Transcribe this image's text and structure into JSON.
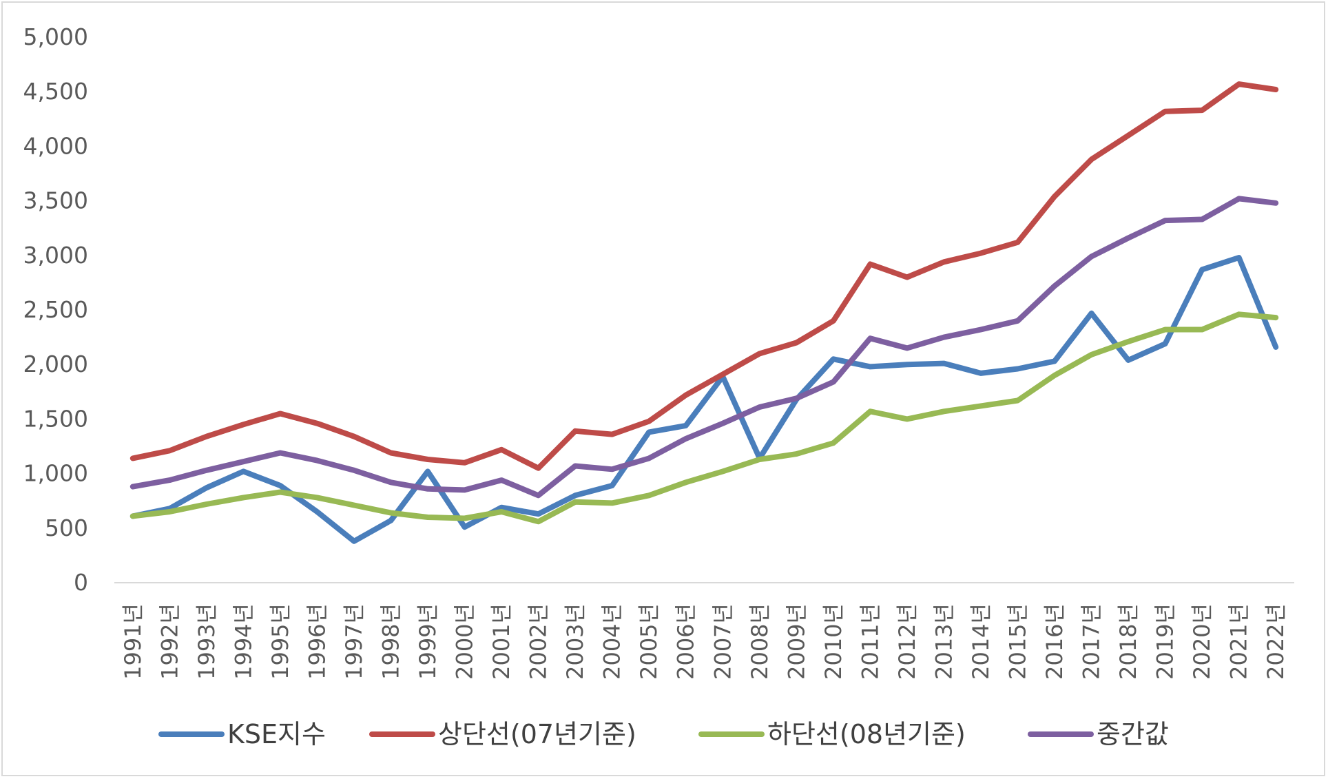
{
  "chart_data": {
    "type": "line",
    "title": "",
    "xlabel": "",
    "ylabel": "",
    "ylim": [
      0,
      5000
    ],
    "yticks": [
      0,
      500,
      1000,
      1500,
      2000,
      2500,
      3000,
      3500,
      4000,
      4500,
      5000
    ],
    "ytick_labels": [
      "0",
      "500",
      "1,000",
      "1,500",
      "2,000",
      "2,500",
      "3,000",
      "3,500",
      "4,000",
      "4,500",
      "5,000"
    ],
    "grid": false,
    "legend_position": "bottom",
    "categories": [
      "1991년",
      "1992년",
      "1993년",
      "1994년",
      "1995년",
      "1996년",
      "1997년",
      "1998년",
      "1999년",
      "2000년",
      "2001년",
      "2002년",
      "2003년",
      "2004년",
      "2005년",
      "2006년",
      "2007년",
      "2008년",
      "2009년",
      "2010년",
      "2011년",
      "2012년",
      "2013년",
      "2014년",
      "2015년",
      "2016년",
      "2017년",
      "2018년",
      "2019년",
      "2020년",
      "2021년",
      "2022년"
    ],
    "series": [
      {
        "name": "KSE지수",
        "color": "#4a7ebb",
        "values": [
          610,
          680,
          870,
          1020,
          890,
          650,
          380,
          570,
          1020,
          510,
          690,
          630,
          800,
          890,
          1380,
          1440,
          1890,
          1140,
          1680,
          2050,
          1980,
          2000,
          2010,
          1920,
          1960,
          2030,
          2470,
          2040,
          2190,
          2870,
          2980,
          2160
        ]
      },
      {
        "name": "상단선(07년기준)",
        "color": "#be4b48",
        "values": [
          1140,
          1210,
          1340,
          1450,
          1550,
          1460,
          1340,
          1190,
          1130,
          1100,
          1220,
          1050,
          1390,
          1360,
          1480,
          1720,
          1910,
          2100,
          2200,
          2400,
          2920,
          2800,
          2940,
          3020,
          3120,
          3540,
          3880,
          4100,
          4320,
          4330,
          4570,
          4520
        ]
      },
      {
        "name": "하단선(08년기준)",
        "color": "#98b954",
        "values": [
          610,
          650,
          720,
          780,
          830,
          780,
          710,
          640,
          600,
          590,
          650,
          560,
          740,
          730,
          800,
          920,
          1020,
          1130,
          1180,
          1280,
          1570,
          1500,
          1570,
          1620,
          1670,
          1900,
          2090,
          2210,
          2320,
          2320,
          2460,
          2430
        ]
      },
      {
        "name": "중간값",
        "color": "#7d5fa0",
        "values": [
          880,
          940,
          1030,
          1110,
          1190,
          1120,
          1030,
          920,
          860,
          850,
          940,
          800,
          1070,
          1040,
          1140,
          1320,
          1460,
          1610,
          1690,
          1840,
          2240,
          2150,
          2250,
          2320,
          2400,
          2720,
          2990,
          3160,
          3320,
          3330,
          3520,
          3480
        ]
      }
    ]
  }
}
